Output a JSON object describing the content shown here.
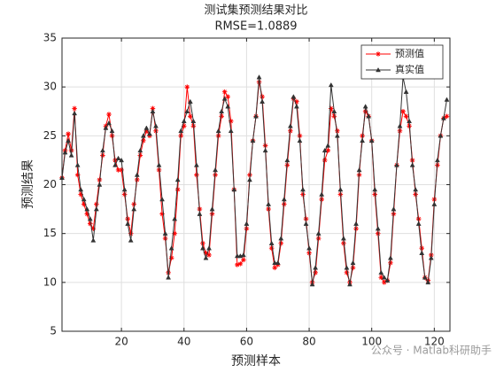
{
  "chart_data": {
    "type": "line",
    "title": "测试集预测结果对比",
    "subtitle": "RMSE=1.0889",
    "xlabel": "预测样本",
    "ylabel": "预测结果",
    "watermark": "公众号 · Matlab科研助手",
    "x": [
      1,
      2,
      3,
      4,
      5,
      6,
      7,
      8,
      9,
      10,
      11,
      12,
      13,
      14,
      15,
      16,
      17,
      18,
      19,
      20,
      21,
      22,
      23,
      24,
      25,
      26,
      27,
      28,
      29,
      30,
      31,
      32,
      33,
      34,
      35,
      36,
      37,
      38,
      39,
      40,
      41,
      42,
      43,
      44,
      45,
      46,
      47,
      48,
      49,
      50,
      51,
      52,
      53,
      54,
      55,
      56,
      57,
      58,
      59,
      60,
      61,
      62,
      63,
      64,
      65,
      66,
      67,
      68,
      69,
      70,
      71,
      72,
      73,
      74,
      75,
      76,
      77,
      78,
      79,
      80,
      81,
      82,
      83,
      84,
      85,
      86,
      87,
      88,
      89,
      90,
      91,
      92,
      93,
      94,
      95,
      96,
      97,
      98,
      99,
      100,
      101,
      102,
      103,
      104,
      105,
      106,
      107,
      108,
      109,
      110,
      111,
      112,
      113,
      114,
      115,
      116,
      117,
      118,
      119,
      120,
      121,
      122,
      123,
      124
    ],
    "series": [
      {
        "name": "预测值",
        "color": "#ff0000",
        "marker": "star",
        "values": [
          20.7,
          23.5,
          25.2,
          23.5,
          27.8,
          21.0,
          19.0,
          18.0,
          17.0,
          16.0,
          15.5,
          18.0,
          20.5,
          23.0,
          26.0,
          27.2,
          25.0,
          22.5,
          21.5,
          21.5,
          19.0,
          16.5,
          15.0,
          18.0,
          20.5,
          23.0,
          24.5,
          25.5,
          25.0,
          27.8,
          25.5,
          21.5,
          17.0,
          14.5,
          11.0,
          12.5,
          15.0,
          19.5,
          25.0,
          26.0,
          30.0,
          27.0,
          26.0,
          21.0,
          17.5,
          14.0,
          13.0,
          12.8,
          17.0,
          21.0,
          25.0,
          27.0,
          29.5,
          29.0,
          26.5,
          19.5,
          11.8,
          11.9,
          12.3,
          15.5,
          21.0,
          24.5,
          27.0,
          30.5,
          29.0,
          24.0,
          17.5,
          13.5,
          11.5,
          11.8,
          14.0,
          18.0,
          22.0,
          25.5,
          28.8,
          28.5,
          25.0,
          19.0,
          16.5,
          13.0,
          10.0,
          11.0,
          14.5,
          18.5,
          22.5,
          23.5,
          27.8,
          27.0,
          25.5,
          19.0,
          14.0,
          11.0,
          10.0,
          11.5,
          15.5,
          21.0,
          25.0,
          27.5,
          27.0,
          24.5,
          19.0,
          15.0,
          10.5,
          10.0,
          10.2,
          12.0,
          17.0,
          22.0,
          25.5,
          27.5,
          27.0,
          26.0,
          22.5,
          19.0,
          16.5,
          13.5,
          10.5,
          10.2,
          12.8,
          18.5,
          22.0,
          25.0,
          26.8,
          27.0
        ]
      },
      {
        "name": "真实值",
        "color": "#333333",
        "marker": "triangle",
        "values": [
          20.7,
          23.3,
          24.5,
          23.0,
          27.3,
          22.0,
          19.5,
          18.5,
          17.5,
          16.5,
          14.3,
          17.5,
          20.0,
          23.5,
          25.8,
          26.3,
          25.5,
          22.0,
          22.7,
          22.5,
          19.5,
          16.0,
          14.3,
          17.5,
          21.0,
          23.5,
          25.0,
          25.8,
          25.2,
          27.5,
          26.0,
          22.0,
          18.5,
          15.0,
          10.5,
          13.5,
          16.5,
          20.5,
          25.5,
          26.5,
          27.5,
          28.5,
          26.5,
          22.0,
          17.0,
          13.5,
          12.5,
          13.5,
          17.5,
          21.5,
          25.5,
          27.5,
          28.8,
          28.0,
          25.5,
          19.5,
          12.7,
          12.7,
          12.8,
          16.0,
          20.5,
          24.5,
          27.0,
          31.0,
          28.5,
          23.5,
          18.0,
          14.0,
          12.0,
          12.0,
          14.5,
          18.5,
          22.5,
          26.0,
          29.0,
          28.0,
          24.5,
          19.5,
          16.0,
          13.5,
          9.8,
          11.5,
          15.0,
          19.0,
          23.5,
          24.0,
          30.2,
          27.5,
          25.0,
          19.5,
          14.5,
          11.5,
          9.8,
          12.0,
          16.0,
          21.5,
          24.5,
          28.0,
          27.0,
          24.5,
          19.5,
          15.5,
          11.0,
          10.5,
          10.2,
          12.5,
          17.5,
          22.0,
          26.0,
          31.0,
          29.5,
          26.5,
          22.0,
          19.5,
          16.0,
          13.0,
          10.5,
          10.0,
          12.5,
          18.0,
          22.5,
          25.0,
          26.8,
          28.7
        ]
      }
    ],
    "xlim": [
      1,
      125
    ],
    "xticks": [
      20,
      40,
      60,
      80,
      100,
      120
    ],
    "ylim": [
      5,
      35
    ],
    "yticks": [
      5,
      10,
      15,
      20,
      25,
      30,
      35
    ],
    "grid": true,
    "legend": "upper right"
  }
}
